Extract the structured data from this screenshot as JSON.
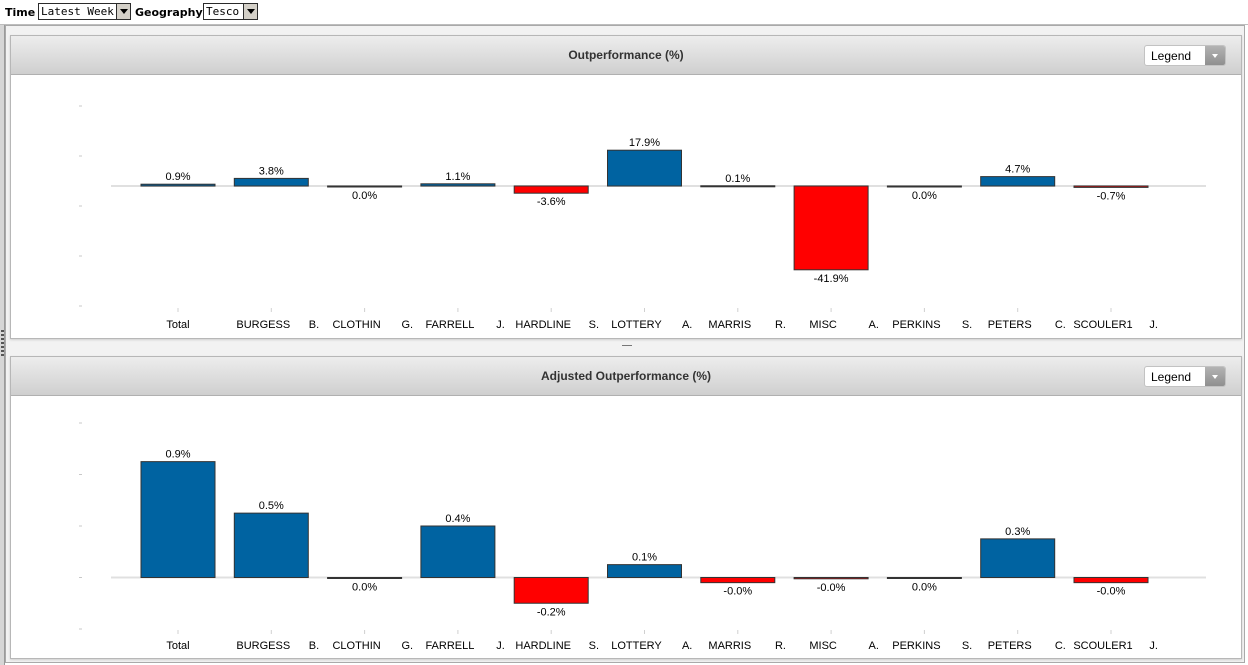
{
  "filters": {
    "time_label": "Time",
    "time_value": "Latest Week",
    "geography_label": "Geography",
    "geography_value": "Tesco"
  },
  "colors": {
    "positive": "#0063a1",
    "negative": "#ff0000",
    "bar_stroke": "#333333"
  },
  "chart_data": [
    {
      "type": "bar",
      "title": "Outperformance (%)",
      "legend_label": "Legend",
      "categories": [
        "Total",
        "BURGESS B.",
        "CLOTHIN G.",
        "FARRELL J.",
        "HARDLINE S.",
        "LOTTERY A.",
        "MARRIS R.",
        "MISC A.",
        "PERKINS S.",
        "PETERS C.",
        "SCOULER1 J."
      ],
      "category_parts": [
        [
          "Total",
          ""
        ],
        [
          "BURGESS",
          "B."
        ],
        [
          "CLOTHIN",
          "G."
        ],
        [
          "FARRELL",
          "J."
        ],
        [
          "HARDLINE",
          "S."
        ],
        [
          "LOTTERY",
          "A."
        ],
        [
          "MARRIS",
          "R."
        ],
        [
          "MISC",
          "A."
        ],
        [
          "PERKINS",
          "S."
        ],
        [
          "PETERS",
          "C."
        ],
        [
          "SCOULER1",
          "J."
        ]
      ],
      "values": [
        0.9,
        3.8,
        0.0,
        1.1,
        -3.6,
        17.9,
        0.1,
        -41.9,
        0.0,
        4.7,
        -0.7
      ],
      "data_labels": [
        "0.9%",
        "3.8%",
        "0.0%",
        "1.1%",
        "-3.6%",
        "17.9%",
        "0.1%",
        "-41.9%",
        "0.0%",
        "4.7%",
        "-0.7%"
      ],
      "ylim": [
        -60,
        40
      ],
      "grid": false
    },
    {
      "type": "bar",
      "title": "Adjusted Outperformance (%)",
      "legend_label": "Legend",
      "categories": [
        "Total",
        "BURGESS B.",
        "CLOTHIN G.",
        "FARRELL J.",
        "HARDLINE S.",
        "LOTTERY A.",
        "MARRIS R.",
        "MISC A.",
        "PERKINS S.",
        "PETERS C.",
        "SCOULER1 J."
      ],
      "category_parts": [
        [
          "Total",
          ""
        ],
        [
          "BURGESS",
          "B."
        ],
        [
          "CLOTHIN",
          "G."
        ],
        [
          "FARRELL",
          "J."
        ],
        [
          "HARDLINE",
          "S."
        ],
        [
          "LOTTERY",
          "A."
        ],
        [
          "MARRIS",
          "R."
        ],
        [
          "MISC",
          "A."
        ],
        [
          "PERKINS",
          "S."
        ],
        [
          "PETERS",
          "C."
        ],
        [
          "SCOULER1",
          "J."
        ]
      ],
      "values": [
        0.9,
        0.5,
        0.0,
        0.4,
        -0.2,
        0.1,
        -0.04,
        -0.01,
        0.0,
        0.3,
        -0.04
      ],
      "data_labels": [
        "0.9%",
        "0.5%",
        "0.0%",
        "0.4%",
        "-0.2%",
        "0.1%",
        "-0.0%",
        "-0.0%",
        "0.0%",
        "0.3%",
        "-0.0%"
      ],
      "ylim": [
        -0.4,
        1.2
      ],
      "grid": false
    }
  ]
}
